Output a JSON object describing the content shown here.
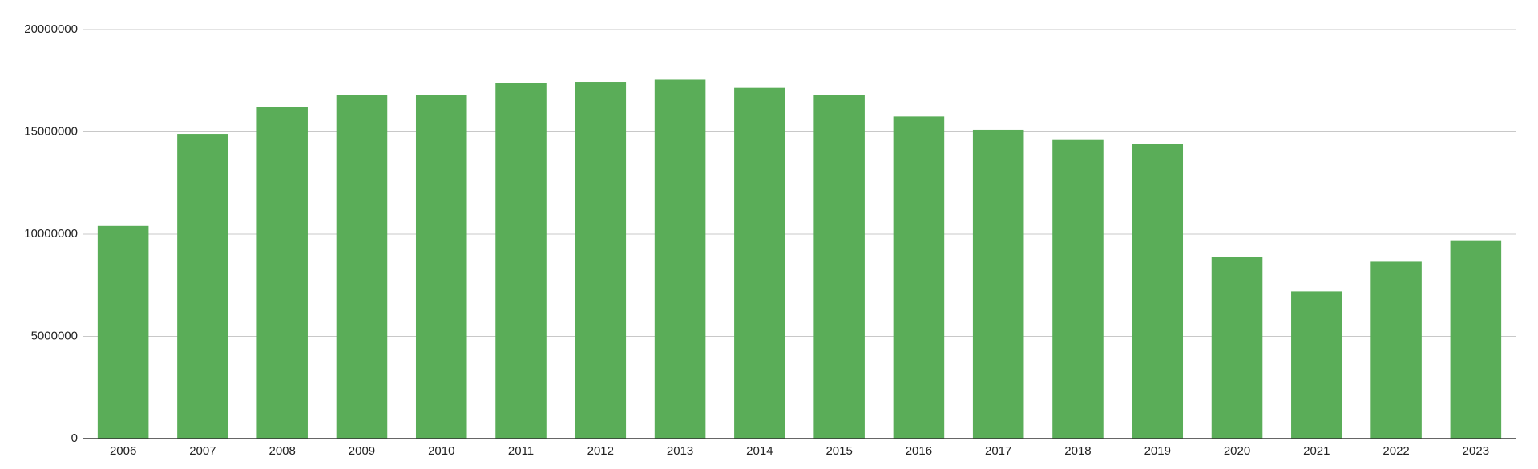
{
  "chart_data": {
    "type": "bar",
    "categories": [
      "2006",
      "2007",
      "2008",
      "2009",
      "2010",
      "2011",
      "2012",
      "2013",
      "2014",
      "2015",
      "2016",
      "2017",
      "2018",
      "2019",
      "2020",
      "2021",
      "2022",
      "2023"
    ],
    "values": [
      10400000,
      14900000,
      16200000,
      16800000,
      16800000,
      17400000,
      17450000,
      17550000,
      17150000,
      16800000,
      15750000,
      15100000,
      14600000,
      14400000,
      8900000,
      7200000,
      8650000,
      9700000
    ],
    "color": "#5aad58",
    "ylim": [
      0,
      20000000
    ],
    "yticks": [
      0,
      5000000,
      10000000,
      15000000,
      20000000
    ],
    "grid": true
  }
}
